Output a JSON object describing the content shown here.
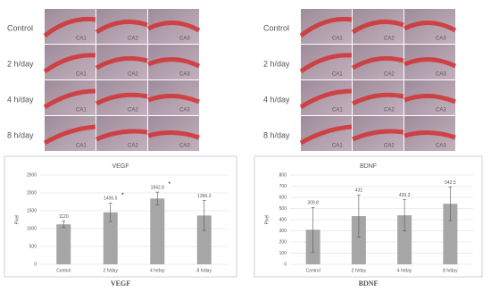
{
  "images": [
    {
      "rows": [
        "Control",
        "2 h/day",
        "4 h/day",
        "8 h/day"
      ],
      "regions": [
        "CA1",
        "CA2",
        "CA3"
      ]
    },
    {
      "rows": [
        "Control",
        "2 h/day",
        "4 h/day",
        "8 h/day"
      ],
      "regions": [
        "CA1",
        "CA2",
        "CA3"
      ]
    }
  ],
  "chart_data": [
    {
      "type": "bar",
      "title": "VEGF",
      "caption": "VEGF",
      "y_label": "Pixel",
      "categories": [
        "Control",
        "2 h/day",
        "4 h/day",
        "8 h/day"
      ],
      "values": [
        1120,
        1455.5,
        1842.8,
        1366.3
      ],
      "errors": [
        90,
        260,
        180,
        420
      ],
      "markers": [
        null,
        "*",
        "*",
        null
      ],
      "color": "#a6a6a6",
      "ylim": [
        0,
        2500
      ],
      "yticks": [
        0,
        500,
        1000,
        1500,
        2000,
        2500
      ],
      "grid": true
    },
    {
      "type": "bar",
      "title": "BDNF",
      "caption": "BDNF",
      "y_label": "Pixel",
      "categories": [
        "Control",
        "2 h/day",
        "4 h/day",
        "8 h/day"
      ],
      "values": [
        309.8,
        432,
        439.3,
        542.5
      ],
      "errors": [
        200,
        190,
        140,
        150
      ],
      "markers": [
        null,
        null,
        null,
        null
      ],
      "color": "#a6a6a6",
      "ylim": [
        0,
        800
      ],
      "yticks": [
        0,
        100,
        200,
        300,
        400,
        500,
        600,
        700,
        800
      ],
      "grid": true
    }
  ]
}
